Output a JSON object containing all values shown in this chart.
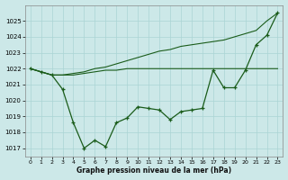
{
  "xlabel": "Graphe pression niveau de la mer (hPa)",
  "bg_color": "#cce8e8",
  "grid_color": "#aad4d4",
  "line_color": "#1a5c1a",
  "ylim": [
    1016.5,
    1026.0
  ],
  "xlim": [
    -0.5,
    23.5
  ],
  "yticks": [
    1017,
    1018,
    1019,
    1020,
    1021,
    1022,
    1023,
    1024,
    1025
  ],
  "xticks": [
    0,
    1,
    2,
    3,
    4,
    5,
    6,
    7,
    8,
    9,
    10,
    11,
    12,
    13,
    14,
    15,
    16,
    17,
    18,
    19,
    20,
    21,
    22,
    23
  ],
  "line_flat": [
    1022.0,
    1021.8,
    1021.6,
    1021.6,
    1021.6,
    1021.7,
    1021.8,
    1021.9,
    1021.9,
    1022.0,
    1022.0,
    1022.0,
    1022.0,
    1022.0,
    1022.0,
    1022.0,
    1022.0,
    1022.0,
    1022.0,
    1022.0,
    1022.0,
    1022.0,
    1022.0,
    1022.0
  ],
  "line_diag": [
    1022.0,
    1021.8,
    1021.6,
    1021.6,
    1021.7,
    1021.8,
    1022.0,
    1022.1,
    1022.3,
    1022.5,
    1022.7,
    1022.9,
    1023.1,
    1023.2,
    1023.4,
    1023.5,
    1023.6,
    1023.7,
    1023.8,
    1024.0,
    1024.2,
    1024.4,
    1025.0,
    1025.5
  ],
  "main": [
    1022.0,
    1021.8,
    1021.6,
    1020.7,
    1018.6,
    1017.0,
    1017.5,
    1017.1,
    1018.6,
    1018.9,
    1019.6,
    1019.5,
    1019.4,
    1018.8,
    1019.3,
    1019.4,
    1019.5,
    1021.9,
    1020.8,
    1020.8,
    1021.9,
    1023.5,
    1024.1,
    1025.5
  ]
}
